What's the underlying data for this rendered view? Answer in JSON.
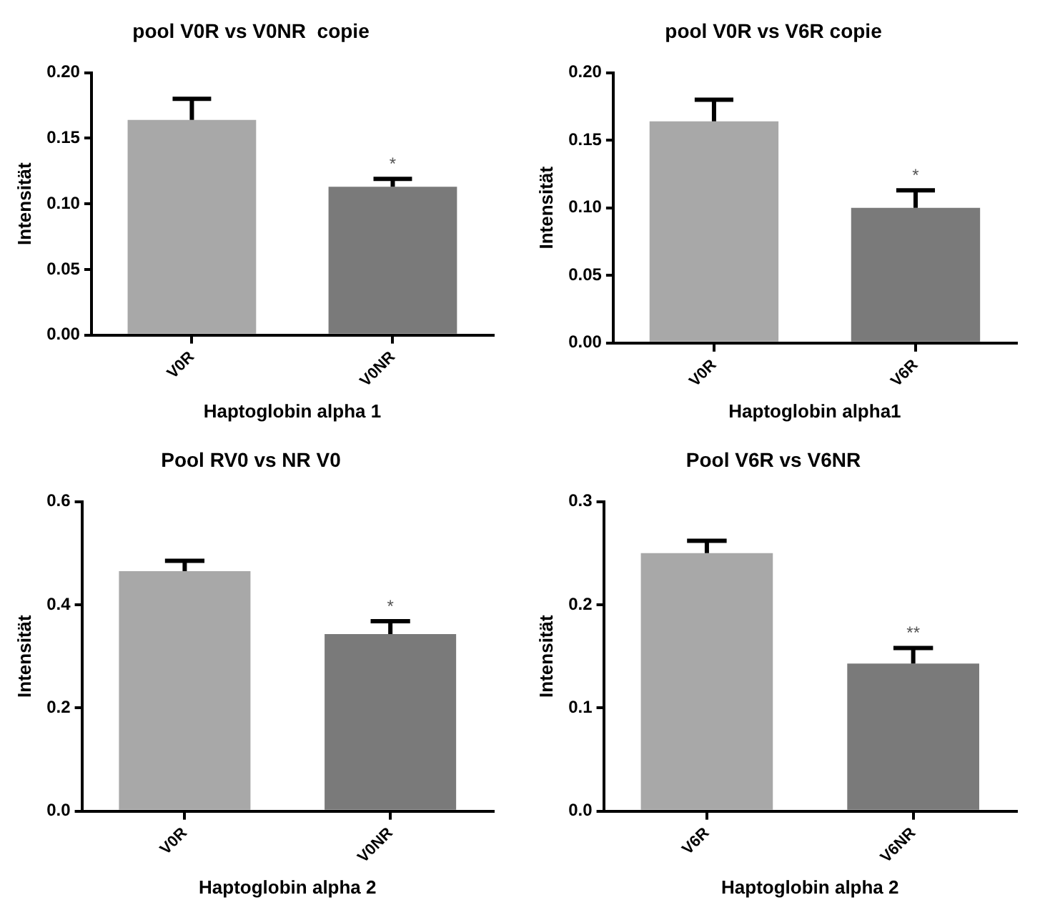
{
  "chart_data": [
    {
      "type": "bar",
      "title": "pool V0R vs V0NR  copie",
      "xlabel": "Haptoglobin alpha 1",
      "ylabel": "Intensität",
      "categories": [
        "V0R",
        "V0NR"
      ],
      "values": [
        0.164,
        0.113
      ],
      "errors": [
        [
          0.164,
          0.18
        ],
        [
          0.113,
          0.119
        ]
      ],
      "colors": [
        "#a8a8a8",
        "#7a7a7a"
      ],
      "ylim": [
        0,
        0.2
      ],
      "yticks": [
        {
          "value": 0,
          "label": "0.00"
        },
        0.05,
        {
          "value": 0.1,
          "label": "0.10"
        },
        0.15,
        {
          "value": 0.2,
          "label": "0.20"
        }
      ],
      "annotations": [
        {
          "text": "*",
          "x": "V0NR",
          "y": 0.119
        }
      ]
    },
    {
      "type": "bar",
      "title": "pool V0R vs V6R copie",
      "xlabel": "Haptoglobin alpha1",
      "ylabel": "Intensität",
      "categories": [
        "V0R",
        "V6R"
      ],
      "values": [
        0.164,
        0.1
      ],
      "errors": [
        [
          0.164,
          0.18
        ],
        [
          0.1,
          0.113
        ]
      ],
      "colors": [
        "#a8a8a8",
        "#7a7a7a"
      ],
      "ylim": [
        0,
        0.2
      ],
      "yticks": [
        {
          "value": 0,
          "label": "0.00"
        },
        0.05,
        {
          "value": 0.1,
          "label": "0.10"
        },
        0.15,
        {
          "value": 0.2,
          "label": "0.20"
        }
      ],
      "annotations": [
        {
          "text": "*",
          "x": "V6R",
          "y": 0.113
        }
      ]
    },
    {
      "type": "bar",
      "title": "Pool RV0 vs NR V0",
      "xlabel": "Haptoglobin alpha 2",
      "ylabel": "Intensität",
      "categories": [
        "V0R",
        "V0NR"
      ],
      "values": [
        0.465,
        0.343
      ],
      "errors": [
        [
          0.465,
          0.485
        ],
        [
          0.343,
          0.368
        ]
      ],
      "colors": [
        "#a8a8a8",
        "#7a7a7a"
      ],
      "ylim": [
        0,
        0.6
      ],
      "yticks": [
        {
          "value": 0,
          "label": "0.0"
        },
        0.2,
        0.4,
        0.6
      ],
      "annotations": [
        {
          "text": "*",
          "x": "V0NR",
          "y": 0.368
        }
      ]
    },
    {
      "type": "bar",
      "title": "Pool V6R vs V6NR",
      "xlabel": "Haptoglobin alpha 2",
      "ylabel": "Intensität",
      "categories": [
        "V6R",
        "V6NR"
      ],
      "values": [
        0.25,
        0.143
      ],
      "errors": [
        [
          0.25,
          0.262
        ],
        [
          0.143,
          0.158
        ]
      ],
      "colors": [
        "#a8a8a8",
        "#7a7a7a"
      ],
      "ylim": [
        0,
        0.3
      ],
      "yticks": [
        {
          "value": 0,
          "label": "0.0"
        },
        0.1,
        0.2,
        0.3
      ],
      "annotations": [
        {
          "text": "**",
          "x": "V6NR",
          "y": 0.158
        }
      ]
    }
  ]
}
